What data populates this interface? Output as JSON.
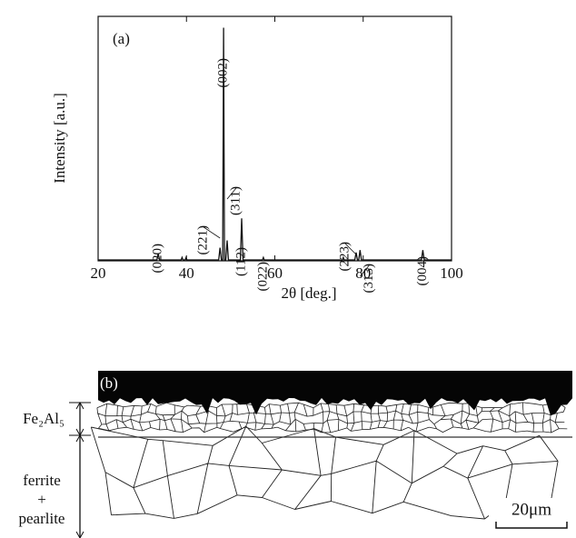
{
  "chart_data": {
    "type": "line",
    "xlabel": "2θ [deg.]",
    "ylabel": "Intensity [a.u.]",
    "panel_label": "(a)",
    "color": "#111111",
    "x": [
      20,
      33.3,
      33.6,
      33.9,
      38.8,
      39.0,
      39.2,
      39.7,
      39.9,
      40.1,
      47.3,
      47.6,
      47.9,
      48.2,
      48.4,
      48.6,
      48.9,
      49.2,
      49.5,
      52.2,
      52.5,
      52.8,
      57.2,
      57.4,
      57.6,
      75.3,
      75.5,
      75.7,
      78.1,
      78.4,
      78.7,
      79.0,
      79.3,
      79.6,
      93.2,
      93.5,
      93.8,
      100
    ],
    "values": [
      0,
      0,
      2.6,
      0,
      0,
      1,
      0,
      0,
      1,
      0,
      0,
      5,
      0,
      0,
      95,
      0,
      0,
      8,
      0,
      0,
      17,
      0,
      0,
      1,
      0,
      0,
      1,
      0,
      0,
      3,
      0,
      0,
      4,
      0,
      0,
      4,
      0,
      0
    ],
    "annotations": [
      {
        "text": "(020)",
        "x": 33.6
      },
      {
        "text": "(221)",
        "x": 47.6
      },
      {
        "text": "(002)",
        "x": 48.4
      },
      {
        "text": "(311)",
        "x": 49.2
      },
      {
        "text": "(112)",
        "x": 52.5
      },
      {
        "text": "(022)",
        "x": 57.4
      },
      {
        "text": "(223)",
        "x": 78.4
      },
      {
        "text": "(313)",
        "x": 79.3
      },
      {
        "text": "(004)",
        "x": 93.5
      }
    ],
    "xlim": [
      20,
      100
    ],
    "xticks": [
      20,
      40,
      60,
      80,
      100
    ],
    "ylim": [
      0,
      100
    ]
  },
  "micrograph": {
    "label": "(b)",
    "layer_1": "Fe₂Al₅",
    "layer_2": [
      "ferrite",
      "+",
      "pearlite"
    ],
    "scale_bar": "20μm"
  }
}
